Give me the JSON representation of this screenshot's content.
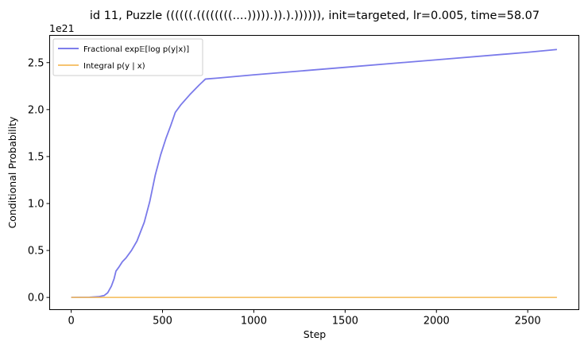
{
  "chart_data": {
    "type": "line",
    "title": "id 11, Puzzle ((((((.((((((((....))))).)).).)))))), init=targeted, lr=0.005, time=58.07",
    "xlabel": "Step",
    "ylabel": "Conditional Probability",
    "y_offset_label": "1e21",
    "xlim": [
      -118,
      2780
    ],
    "ylim": [
      -0.13,
      2.79
    ],
    "y_scale_exponent": 21,
    "x_ticks": [
      0,
      500,
      1000,
      1500,
      2000,
      2500
    ],
    "x_tick_labels": [
      "0",
      "500",
      "1000",
      "1500",
      "2000",
      "2500"
    ],
    "y_ticks": [
      0.0,
      0.5,
      1.0,
      1.5,
      2.0,
      2.5
    ],
    "y_tick_labels": [
      "0.0",
      "0.5",
      "1.0",
      "1.5",
      "2.0",
      "2.5"
    ],
    "grid": false,
    "legend_position": "top-left",
    "series": [
      {
        "name": "Fractional exp𝔼[log p(y|x)]",
        "color": "#6b6be8",
        "x": [
          0,
          100,
          150,
          180,
          200,
          220,
          235,
          245,
          260,
          280,
          300,
          330,
          360,
          400,
          430,
          460,
          490,
          520,
          545,
          570,
          600,
          650,
          700,
          735,
          800,
          1000,
          1500,
          2000,
          2500,
          2660
        ],
        "y": [
          0.0,
          0.002,
          0.008,
          0.02,
          0.05,
          0.12,
          0.2,
          0.28,
          0.32,
          0.38,
          0.42,
          0.5,
          0.6,
          0.8,
          1.02,
          1.3,
          1.52,
          1.7,
          1.83,
          1.97,
          2.05,
          2.16,
          2.26,
          2.325,
          2.335,
          2.37,
          2.45,
          2.53,
          2.61,
          2.64
        ]
      },
      {
        "name": "Integral p(y | x)",
        "color": "#f5bc5c",
        "x": [
          0,
          500,
          1000,
          1500,
          2000,
          2500,
          2660
        ],
        "y": [
          0.0,
          0.0,
          0.0,
          0.0,
          0.0,
          0.0,
          0.0
        ]
      }
    ]
  }
}
